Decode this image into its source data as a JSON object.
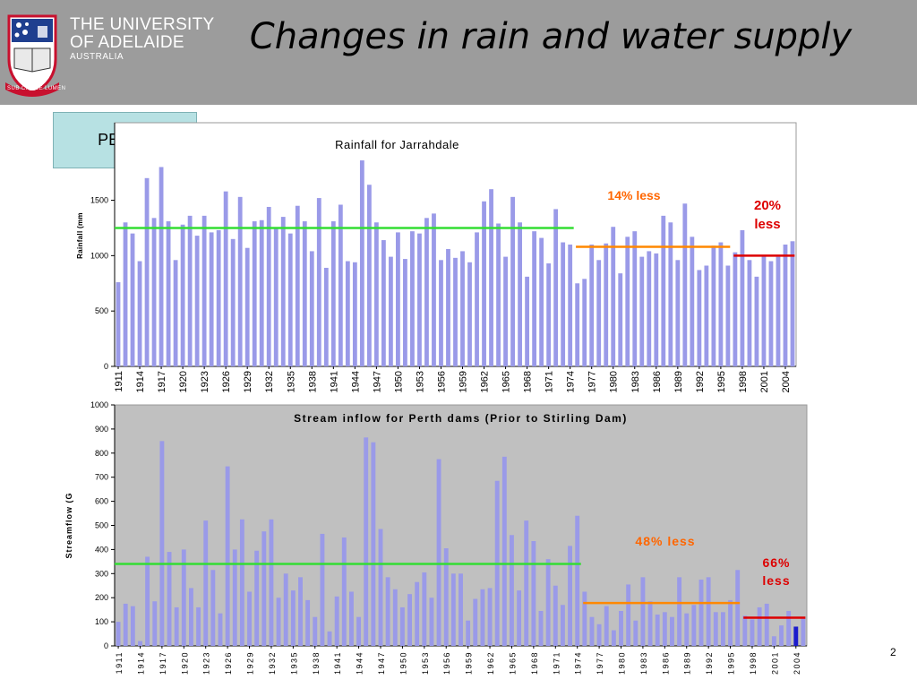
{
  "header": {
    "university_line1": "THE UNIVERSITY",
    "university_line2": "OF ADELAIDE",
    "university_line3": "AUSTRALIA",
    "motto": "SUB CRUCE LUMEN",
    "title": "Changes in rain and water supply"
  },
  "region_label": "PERTH",
  "slide_number": "2",
  "colors": {
    "header_bg": "#9c9c9c",
    "bar": "#9a9ae8",
    "bar_highlight": "#1c1ccc",
    "green_line": "#33dd33",
    "orange_line": "#ff8800",
    "red_line": "#dd0000",
    "orange_text": "#ff6600",
    "red_text": "#dd0000",
    "plot_bg_bottom": "#c0c0c0"
  },
  "chart_data": [
    {
      "type": "bar",
      "title": "Rainfall for Jarrahdale",
      "ylabel": "Rainfall (mm",
      "xlabel": "",
      "ylim": [
        0,
        2200
      ],
      "yticks": [
        0,
        500,
        1000,
        1500
      ],
      "xtick_labels": [
        "1911",
        "1914",
        "1917",
        "1920",
        "1923",
        "1926",
        "1929",
        "1932",
        "1935",
        "1938",
        "1941",
        "1944",
        "1947",
        "1950",
        "1953",
        "1956",
        "1959",
        "1962",
        "1965",
        "1968",
        "1971",
        "1974",
        "1977",
        "1980",
        "1983",
        "1986",
        "1989",
        "1992",
        "1995",
        "1998",
        "2001",
        "2004"
      ],
      "years": [
        1911,
        1912,
        1913,
        1914,
        1915,
        1916,
        1917,
        1918,
        1919,
        1920,
        1921,
        1922,
        1923,
        1924,
        1925,
        1926,
        1927,
        1928,
        1929,
        1930,
        1931,
        1932,
        1933,
        1934,
        1935,
        1936,
        1937,
        1938,
        1939,
        1940,
        1941,
        1942,
        1943,
        1944,
        1945,
        1946,
        1947,
        1948,
        1949,
        1950,
        1951,
        1952,
        1953,
        1954,
        1955,
        1956,
        1957,
        1958,
        1959,
        1960,
        1961,
        1962,
        1963,
        1964,
        1965,
        1966,
        1967,
        1968,
        1969,
        1970,
        1971,
        1972,
        1973,
        1974,
        1975,
        1976,
        1977,
        1978,
        1979,
        1980,
        1981,
        1982,
        1983,
        1984,
        1985,
        1986,
        1987,
        1988,
        1989,
        1990,
        1991,
        1992,
        1993,
        1994,
        1995,
        1996,
        1997,
        1998,
        1999,
        2000,
        2001,
        2002,
        2003,
        2004,
        2005
      ],
      "values": [
        760,
        1300,
        1200,
        950,
        1700,
        1340,
        1800,
        1310,
        960,
        1280,
        1360,
        1180,
        1360,
        1210,
        1230,
        1580,
        1150,
        1530,
        1070,
        1310,
        1320,
        1440,
        1250,
        1350,
        1200,
        1450,
        1310,
        1040,
        1520,
        890,
        1310,
        1460,
        950,
        940,
        1860,
        1640,
        1300,
        1140,
        990,
        1210,
        970,
        1220,
        1200,
        1340,
        1380,
        960,
        1060,
        980,
        1040,
        940,
        1210,
        1490,
        1600,
        1290,
        990,
        1530,
        1300,
        810,
        1220,
        1160,
        930,
        1420,
        1120,
        1100,
        750,
        790,
        1100,
        960,
        1110,
        1260,
        840,
        1170,
        1220,
        990,
        1040,
        1020,
        1360,
        1300,
        960,
        1470,
        1170,
        870,
        910,
        1090,
        1120,
        910,
        1030,
        1230,
        960,
        810,
        1000,
        950,
        990,
        1100,
        1130
      ],
      "annotations": [
        {
          "text": "14% less",
          "color": "orange",
          "from_year": 1975,
          "to_year": 1996,
          "level": 1080
        },
        {
          "text": "20% less",
          "color": "red",
          "from_year": 1997,
          "to_year": 2005,
          "level": 1000
        }
      ],
      "reference_line": {
        "color": "green",
        "from_year": 1911,
        "to_year": 1974,
        "level": 1250
      },
      "legend": "none",
      "grid": false
    },
    {
      "type": "bar",
      "title": "Stream inflow for Perth dams (Prior to Stirling Dam)",
      "ylabel": "Streamflow (G",
      "xlabel": "",
      "ylim": [
        0,
        1000
      ],
      "yticks": [
        0,
        100,
        200,
        300,
        400,
        500,
        600,
        700,
        800,
        900,
        1000
      ],
      "xtick_labels": [
        "1911",
        "1914",
        "1917",
        "1920",
        "1923",
        "1926",
        "1929",
        "1932",
        "1935",
        "1938",
        "1941",
        "1944",
        "1947",
        "1950",
        "1953",
        "1956",
        "1959",
        "1962",
        "1965",
        "1968",
        "1971",
        "1974",
        "1977",
        "1980",
        "1983",
        "1986",
        "1989",
        "1992",
        "1995",
        "1998",
        "2001",
        "2004"
      ],
      "years": [
        1911,
        1912,
        1913,
        1914,
        1915,
        1916,
        1917,
        1918,
        1919,
        1920,
        1921,
        1922,
        1923,
        1924,
        1925,
        1926,
        1927,
        1928,
        1929,
        1930,
        1931,
        1932,
        1933,
        1934,
        1935,
        1936,
        1937,
        1938,
        1939,
        1940,
        1941,
        1942,
        1943,
        1944,
        1945,
        1946,
        1947,
        1948,
        1949,
        1950,
        1951,
        1952,
        1953,
        1954,
        1955,
        1956,
        1957,
        1958,
        1959,
        1960,
        1961,
        1962,
        1963,
        1964,
        1965,
        1966,
        1967,
        1968,
        1969,
        1970,
        1971,
        1972,
        1973,
        1974,
        1975,
        1976,
        1977,
        1978,
        1979,
        1980,
        1981,
        1982,
        1983,
        1984,
        1985,
        1986,
        1987,
        1988,
        1989,
        1990,
        1991,
        1992,
        1993,
        1994,
        1995,
        1996,
        1997,
        1998,
        1999,
        2000,
        2001,
        2002,
        2003,
        2004,
        2005
      ],
      "values": [
        100,
        175,
        165,
        20,
        370,
        185,
        850,
        390,
        160,
        400,
        240,
        160,
        520,
        315,
        135,
        745,
        400,
        525,
        225,
        395,
        475,
        525,
        200,
        300,
        230,
        285,
        190,
        120,
        465,
        60,
        205,
        450,
        225,
        120,
        865,
        845,
        485,
        285,
        235,
        160,
        215,
        265,
        305,
        200,
        775,
        405,
        300,
        300,
        105,
        195,
        235,
        240,
        685,
        785,
        460,
        230,
        520,
        435,
        145,
        360,
        250,
        170,
        415,
        540,
        225,
        120,
        90,
        165,
        65,
        145,
        255,
        105,
        285,
        185,
        130,
        140,
        120,
        285,
        135,
        170,
        275,
        285,
        140,
        140,
        190,
        315,
        125,
        110,
        160,
        175,
        40,
        85,
        145,
        80,
        115
      ],
      "highlight_index": 93,
      "annotations": [
        {
          "text": "48% less",
          "color": "orange",
          "from_year": 1975,
          "to_year": 1996,
          "level": 178
        },
        {
          "text": "66% less",
          "color": "red",
          "from_year": 1997,
          "to_year": 2005,
          "level": 117
        }
      ],
      "reference_line": {
        "color": "green",
        "from_year": 1911,
        "to_year": 1974,
        "level": 340
      },
      "legend": "none",
      "grid": false
    }
  ]
}
